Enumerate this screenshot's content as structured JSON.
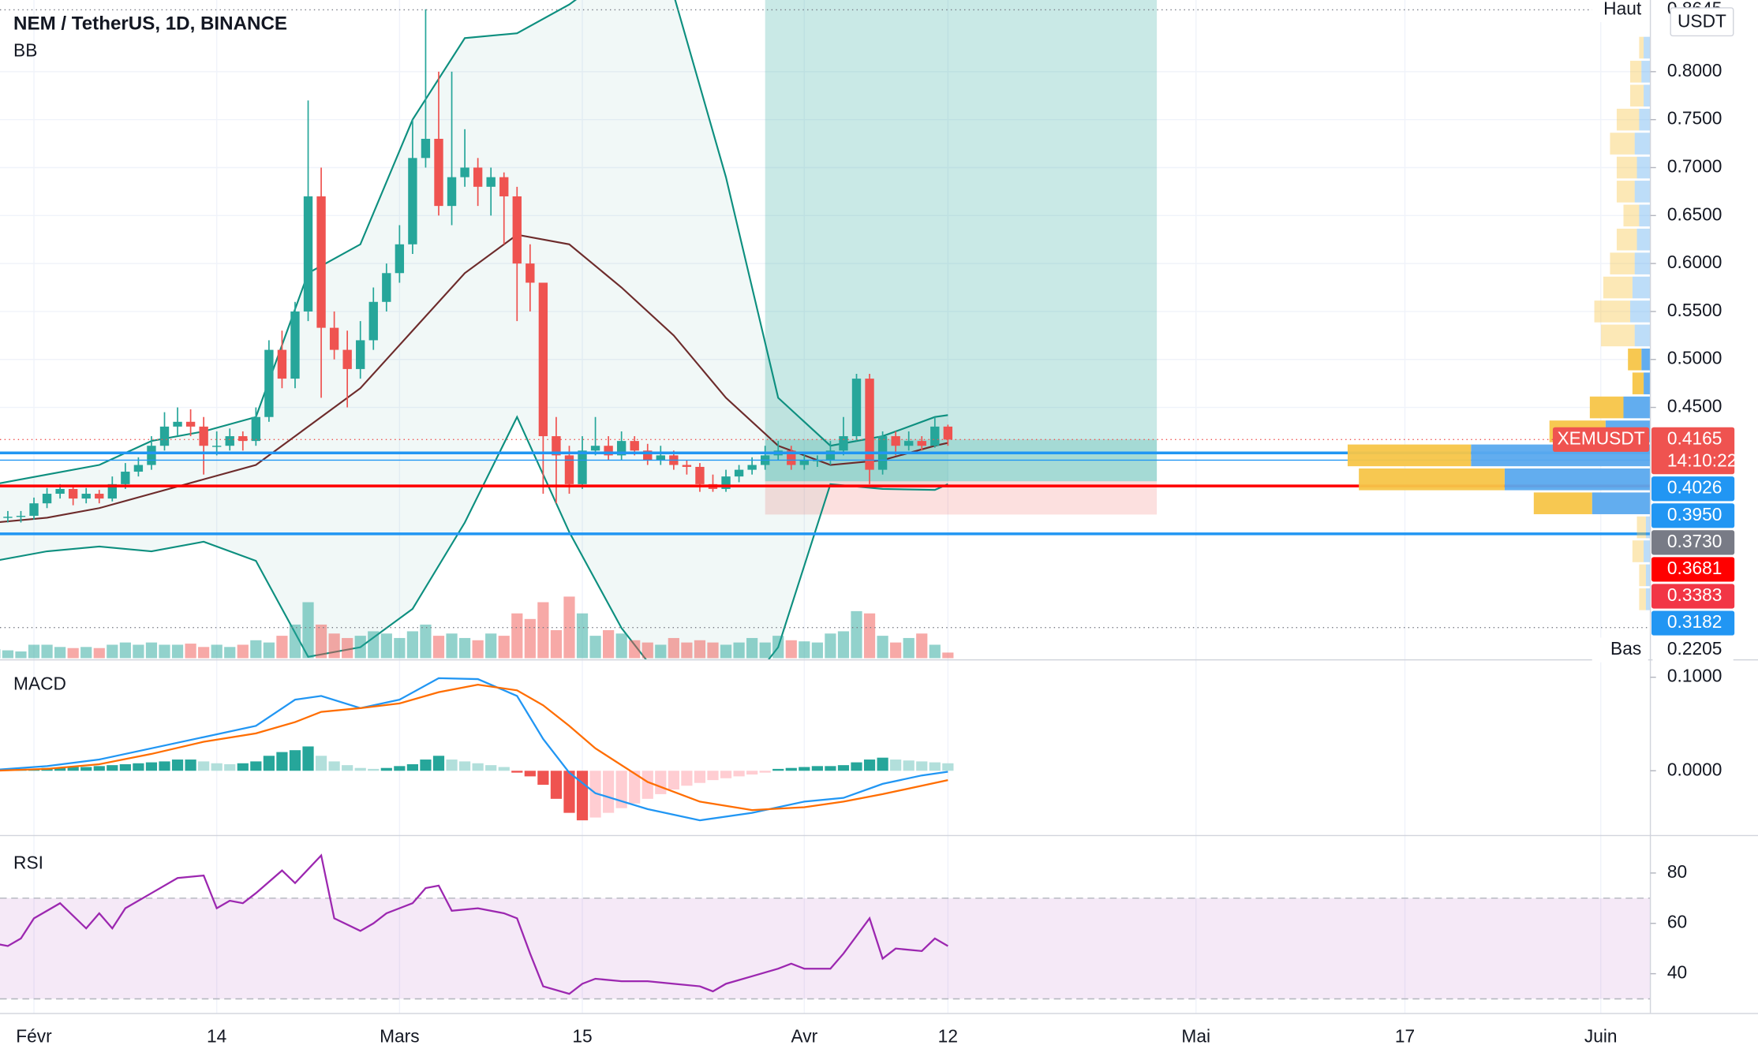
{
  "chart_data": [
    {
      "type": "candlestick",
      "title": "NEM / TetherUS, 1D, BINANCE",
      "unit": "USDT",
      "x": [
        -3,
        -2,
        -1,
        0,
        1,
        2,
        3,
        4,
        5,
        6,
        7,
        8,
        9,
        10,
        11,
        12,
        13,
        14,
        15,
        16,
        17,
        18,
        19,
        20,
        21,
        22,
        23,
        24,
        25,
        26,
        27,
        28,
        29,
        30,
        31,
        32,
        33,
        34,
        35,
        36,
        37,
        38,
        39,
        40,
        41,
        42,
        43,
        44,
        45,
        46,
        47,
        48,
        49,
        50,
        51,
        52,
        53,
        54,
        55,
        56,
        57,
        58,
        59,
        60,
        61,
        62,
        63,
        64,
        65,
        66,
        67,
        68,
        69,
        70
      ],
      "open": [
        0.33,
        0.335,
        0.336,
        0.337,
        0.35,
        0.36,
        0.365,
        0.355,
        0.36,
        0.355,
        0.37,
        0.383,
        0.39,
        0.41,
        0.43,
        0.435,
        0.43,
        0.41,
        0.41,
        0.42,
        0.415,
        0.44,
        0.51,
        0.48,
        0.55,
        0.67,
        0.533,
        0.51,
        0.49,
        0.52,
        0.56,
        0.59,
        0.62,
        0.71,
        0.73,
        0.66,
        0.69,
        0.7,
        0.68,
        0.69,
        0.67,
        0.6,
        0.58,
        0.42,
        0.4,
        0.37,
        0.405,
        0.41,
        0.4,
        0.415,
        0.405,
        0.395,
        0.4,
        0.39,
        0.388,
        0.37,
        0.365,
        0.378,
        0.385,
        0.39,
        0.4,
        0.405,
        0.39,
        0.395,
        0.395,
        0.405,
        0.42,
        0.48,
        0.385,
        0.42,
        0.41,
        0.415,
        0.41,
        0.43
      ],
      "high": [
        0.34,
        0.342,
        0.342,
        0.356,
        0.366,
        0.37,
        0.368,
        0.366,
        0.364,
        0.378,
        0.392,
        0.398,
        0.42,
        0.445,
        0.45,
        0.448,
        0.44,
        0.425,
        0.428,
        0.425,
        0.45,
        0.52,
        0.53,
        0.56,
        0.77,
        0.7,
        0.55,
        0.53,
        0.54,
        0.575,
        0.6,
        0.64,
        0.75,
        0.865,
        0.8,
        0.8,
        0.74,
        0.71,
        0.7,
        0.695,
        0.68,
        0.62,
        0.58,
        0.44,
        0.41,
        0.42,
        0.44,
        0.42,
        0.425,
        0.42,
        0.412,
        0.41,
        0.405,
        0.395,
        0.392,
        0.38,
        0.385,
        0.39,
        0.398,
        0.41,
        0.415,
        0.41,
        0.402,
        0.4,
        0.415,
        0.44,
        0.485,
        0.485,
        0.425,
        0.425,
        0.425,
        0.42,
        0.44,
        0.432
      ],
      "low": [
        0.326,
        0.33,
        0.33,
        0.333,
        0.345,
        0.355,
        0.348,
        0.35,
        0.35,
        0.352,
        0.365,
        0.378,
        0.385,
        0.405,
        0.42,
        0.42,
        0.38,
        0.4,
        0.405,
        0.405,
        0.41,
        0.435,
        0.47,
        0.47,
        0.54,
        0.46,
        0.5,
        0.45,
        0.48,
        0.51,
        0.55,
        0.58,
        0.61,
        0.7,
        0.65,
        0.64,
        0.68,
        0.66,
        0.65,
        0.62,
        0.54,
        0.55,
        0.36,
        0.35,
        0.36,
        0.365,
        0.4,
        0.395,
        0.395,
        0.4,
        0.39,
        0.39,
        0.385,
        0.38,
        0.362,
        0.362,
        0.362,
        0.372,
        0.38,
        0.385,
        0.395,
        0.385,
        0.385,
        0.388,
        0.39,
        0.4,
        0.415,
        0.37,
        0.38,
        0.4,
        0.405,
        0.405,
        0.408,
        0.41
      ],
      "close": [
        0.335,
        0.336,
        0.337,
        0.35,
        0.36,
        0.365,
        0.355,
        0.36,
        0.355,
        0.37,
        0.383,
        0.39,
        0.41,
        0.43,
        0.435,
        0.43,
        0.41,
        0.41,
        0.42,
        0.415,
        0.44,
        0.51,
        0.48,
        0.55,
        0.67,
        0.533,
        0.51,
        0.49,
        0.52,
        0.56,
        0.59,
        0.62,
        0.71,
        0.73,
        0.66,
        0.69,
        0.7,
        0.68,
        0.69,
        0.67,
        0.6,
        0.58,
        0.42,
        0.4,
        0.37,
        0.405,
        0.41,
        0.4,
        0.415,
        0.405,
        0.395,
        0.4,
        0.39,
        0.388,
        0.37,
        0.365,
        0.378,
        0.385,
        0.39,
        0.4,
        0.405,
        0.39,
        0.395,
        0.395,
        0.405,
        0.42,
        0.48,
        0.385,
        0.42,
        0.41,
        0.415,
        0.41,
        0.43,
        0.4165
      ],
      "up_color": "#26a69a",
      "down_color": "#ef5350",
      "volume": [
        8,
        7,
        6,
        12,
        12,
        10,
        9,
        10,
        9,
        12,
        14,
        12,
        14,
        12,
        12,
        13,
        10,
        12,
        10,
        12,
        16,
        14,
        20,
        30,
        50,
        30,
        22,
        18,
        20,
        24,
        22,
        18,
        24,
        30,
        20,
        22,
        18,
        16,
        22,
        20,
        40,
        35,
        50,
        25,
        55,
        40,
        20,
        25,
        22,
        16,
        14,
        12,
        18,
        14,
        16,
        14,
        12,
        14,
        18,
        14,
        20,
        16,
        15,
        14,
        22,
        24,
        42,
        40,
        20,
        14,
        18,
        22,
        12,
        5
      ],
      "indicator": {
        "name": "BB",
        "band_color": "#0d8f7f",
        "basis_color": "#6d2b2b",
        "x": [
          -3,
          1,
          5,
          9,
          13,
          17,
          21,
          25,
          29,
          33,
          37,
          41,
          45,
          49,
          53,
          57,
          61,
          65,
          69,
          70
        ],
        "upper": [
          0.37,
          0.38,
          0.39,
          0.415,
          0.425,
          0.44,
          0.59,
          0.62,
          0.75,
          0.835,
          0.84,
          0.87,
          0.91,
          0.88,
          0.69,
          0.46,
          0.41,
          0.42,
          0.44,
          0.442
        ],
        "basis": [
          0.33,
          0.335,
          0.345,
          0.36,
          0.375,
          0.39,
          0.43,
          0.47,
          0.53,
          0.59,
          0.63,
          0.62,
          0.575,
          0.525,
          0.46,
          0.41,
          0.39,
          0.395,
          0.41,
          0.413
        ],
        "lower": [
          0.29,
          0.3,
          0.305,
          0.3,
          0.31,
          0.29,
          0.19,
          0.2,
          0.24,
          0.33,
          0.44,
          0.32,
          0.22,
          0.15,
          0.13,
          0.2,
          0.37,
          0.365,
          0.364,
          0.37
        ]
      },
      "position": {
        "x": [
          56,
          86
        ],
        "target": 0.88,
        "entry": 0.373,
        "stop": 0.3383
      },
      "levels": [
        {
          "value": 0.4026,
          "color": "#2196f3",
          "line": true,
          "width": 2.5
        },
        {
          "value": 0.395,
          "label": "0.3950",
          "color": "#2196f3",
          "line": true,
          "width": 1
        },
        {
          "value": 0.373,
          "label": "0.3730",
          "color": "#787b86",
          "line": false,
          "width": 0
        },
        {
          "value": 0.3681,
          "color": "#ff0000",
          "line": true,
          "width": 2.5
        },
        {
          "value": 0.3383,
          "color": "#f23645",
          "line": false,
          "width": 0
        },
        {
          "value": 0.3182,
          "color": "#2196f3",
          "line": true,
          "width": 2.5
        }
      ],
      "last": {
        "name": "XEMUSDT",
        "value": 0.4165,
        "countdown": "14:10:22",
        "color": "#ef5350"
      },
      "high_mark": {
        "label": "Haut",
        "value": 0.8645
      },
      "low_mark": {
        "label": "Bas",
        "value": 0.2205
      },
      "volume_profile": {
        "up_color": "#5aa9ee",
        "down_color": "#f7c548",
        "value_area": [
          0.3375,
          0.5125
        ],
        "price": [
          0.25,
          0.275,
          0.3,
          0.325,
          0.35,
          0.375,
          0.4,
          0.425,
          0.45,
          0.475,
          0.5,
          0.525,
          0.55,
          0.575,
          0.6,
          0.625,
          0.65,
          0.675,
          0.7,
          0.725,
          0.75,
          0.775,
          0.8,
          0.825
        ],
        "up": [
          4,
          4,
          6,
          4,
          52,
          130,
          160,
          40,
          24,
          6,
          8,
          14,
          18,
          16,
          14,
          12,
          10,
          14,
          12,
          14,
          10,
          6,
          8,
          6
        ],
        "down": [
          6,
          6,
          10,
          8,
          52,
          130,
          110,
          50,
          30,
          10,
          12,
          30,
          32,
          26,
          22,
          18,
          14,
          16,
          18,
          22,
          20,
          12,
          10,
          4
        ]
      },
      "xlim": [
        -2.6,
        123.8
      ],
      "xticks": [
        {
          "value": 0,
          "label": "Févr"
        },
        14,
        {
          "value": 28,
          "label": "Mars"
        },
        {
          "value": 42,
          "label": "15"
        },
        {
          "value": 59,
          "label": "Avr"
        },
        {
          "value": 70,
          "label": "12"
        },
        {
          "value": 89,
          "label": "Mai"
        },
        {
          "value": 105,
          "label": "17"
        },
        {
          "value": 120,
          "label": "Juin"
        }
      ],
      "ylim": [
        0.1886,
        0.8747
      ],
      "yticks": [
        {
          "value": 0.45,
          "label": "0.4500"
        },
        {
          "value": 0.5,
          "label": "0.5000"
        },
        {
          "value": 0.55,
          "label": "0.5500"
        },
        {
          "value": 0.6,
          "label": "0.6000"
        },
        {
          "value": 0.65,
          "label": "0.6500"
        },
        {
          "value": 0.7,
          "label": "0.7000"
        },
        {
          "value": 0.75,
          "label": "0.7500"
        },
        {
          "value": 0.8,
          "label": "0.8000"
        }
      ],
      "grid": true
    },
    {
      "type": "macd",
      "title": "MACD",
      "x": [
        -3,
        1,
        5,
        9,
        13,
        17,
        20,
        22,
        25,
        28,
        31,
        34,
        37,
        39,
        41,
        43,
        47,
        51,
        55,
        59,
        62,
        65,
        68,
        70
      ],
      "series": [
        {
          "color": "#2196f3",
          "values": [
            0.001,
            0.005,
            0.012,
            0.024,
            0.036,
            0.048,
            0.076,
            0.08,
            0.067,
            0.076,
            0.099,
            0.098,
            0.08,
            0.034,
            -0.002,
            -0.024,
            -0.041,
            -0.053,
            -0.045,
            -0.033,
            -0.029,
            -0.014,
            -0.005,
            -0.001
          ]
        },
        {
          "color": "#ff6d00",
          "values": [
            0,
            0.002,
            0.007,
            0.018,
            0.031,
            0.04,
            0.052,
            0.063,
            0.067,
            0.072,
            0.084,
            0.092,
            0.086,
            0.07,
            0.048,
            0.024,
            -0.012,
            -0.033,
            -0.042,
            -0.039,
            -0.033,
            -0.025,
            -0.016,
            -0.01
          ]
        }
      ],
      "histogram": {
        "colors": [
          "#26a69a",
          "#b2dfdb",
          "#ef5350",
          "#ffcdd2"
        ],
        "values": [
          0.001,
          0.001,
          0.002,
          0.002,
          0.003,
          0.003,
          0.004,
          0.004,
          0.005,
          0.006,
          0.007,
          0.008,
          0.009,
          0.01,
          0.012,
          0.012,
          0.01,
          0.008,
          0.007,
          0.008,
          0.01,
          0.016,
          0.02,
          0.022,
          0.026,
          0.016,
          0.01,
          0.006,
          0.003,
          0.002,
          0.003,
          0.005,
          0.007,
          0.012,
          0.016,
          0.012,
          0.01,
          0.008,
          0.006,
          0.004,
          -0.002,
          -0.006,
          -0.015,
          -0.03,
          -0.045,
          -0.053,
          -0.05,
          -0.045,
          -0.04,
          -0.035,
          -0.03,
          -0.025,
          -0.02,
          -0.016,
          -0.013,
          -0.01,
          -0.008,
          -0.006,
          -0.004,
          -0.002,
          0.002,
          0.003,
          0.004,
          0.005,
          0.005,
          0.006,
          0.009,
          0.012,
          0.014,
          0.012,
          0.011,
          0.01,
          0.009,
          0.008
        ]
      },
      "ylim": [
        -0.0687,
        0.118
      ],
      "yticks": [
        {
          "value": 0.1,
          "label": "0.1000"
        },
        {
          "value": 0,
          "label": "0.0000"
        }
      ]
    },
    {
      "type": "line",
      "title": "RSI",
      "color": "#9c27b0",
      "band": [
        30,
        70
      ],
      "band_color": "#9c27b0",
      "x": [
        -3,
        -2,
        -1,
        0,
        2,
        4,
        5,
        6,
        7,
        9,
        11,
        13,
        14,
        15,
        16,
        17,
        19,
        20,
        22,
        23,
        25,
        26,
        27,
        29,
        30,
        31,
        32,
        34,
        36,
        37,
        38,
        39,
        41,
        42,
        43,
        45,
        47,
        49,
        51,
        52,
        53,
        55,
        57,
        58,
        59,
        61,
        62,
        64,
        65,
        66,
        68,
        69,
        70
      ],
      "values": [
        52,
        51,
        54,
        62,
        68,
        58,
        64,
        58,
        66,
        72,
        78,
        79,
        66,
        69,
        68,
        72,
        81,
        76,
        87,
        62,
        57,
        60,
        64,
        68,
        74,
        75,
        65,
        66,
        64,
        62,
        48,
        35,
        32,
        36,
        38,
        37,
        37,
        36,
        35,
        33,
        36,
        39,
        42,
        44,
        42,
        42,
        48,
        62,
        46,
        50,
        49,
        54,
        51
      ],
      "ylim": [
        24.4,
        94.2
      ],
      "yticks": [
        40,
        60,
        80
      ]
    }
  ]
}
